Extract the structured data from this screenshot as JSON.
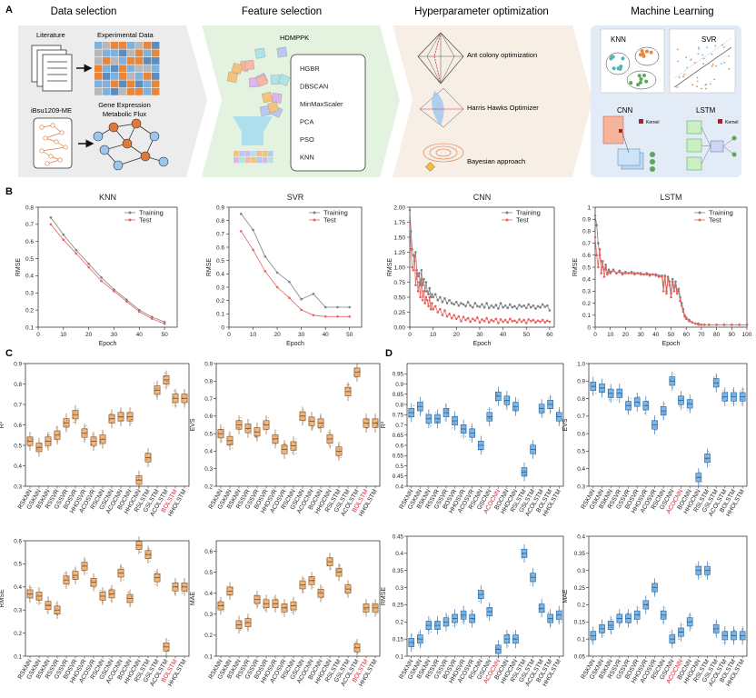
{
  "colors": {
    "training": "#808080",
    "test": "#e8625d",
    "box_orange": "#f0b680",
    "box_orange_edge": "#7a4a1c",
    "box_blue": "#7eb7e6",
    "box_blue_edge": "#1f5f9a",
    "highlight_label": "#d6202a",
    "panel_bg": "#eef0f3"
  },
  "panelA": {
    "letter": "A",
    "sections": [
      {
        "title": "Data selection",
        "bg": "#ececec"
      },
      {
        "title": "Feature selection",
        "bg": "#e3f3df"
      },
      {
        "title": "Hyperparameter optimization",
        "bg": "#f7eee6"
      },
      {
        "title": "Machine Learning",
        "bg": "#e3ebf7"
      }
    ],
    "data_selection": {
      "literature": "Literature",
      "experimental": "Experimental Data",
      "strain": "iBsu1209-ME",
      "gene_expression": "Gene Expression",
      "metabolic_flux": "Metabolic Flux"
    },
    "feature_selection": {
      "title": "HDMPPK",
      "methods": [
        "HGBR",
        "DBSCAN",
        "MinMaxScaler",
        "PCA",
        "PSO",
        "KNN"
      ]
    },
    "hyperparameter": {
      "methods": [
        "Ant colony optimization",
        "Harris Hawks Optimizer",
        "Bayesian approach"
      ]
    },
    "ml": {
      "models": [
        "KNN",
        "SVR",
        "CNN",
        "LSTM"
      ],
      "kernel": "Kernel"
    }
  },
  "panelB": {
    "letter": "B",
    "training_label": "Training",
    "test_label": "Test",
    "ylabel": "RMSE",
    "xlabel": "Epoch"
  },
  "chart_data": [
    {
      "id": "knn",
      "type": "line",
      "title": "KNN",
      "xlabel": "Epoch",
      "ylabel": "RMSE",
      "xlim": [
        0,
        55
      ],
      "ylim": [
        0.1,
        0.8
      ],
      "xticks": [
        0,
        10,
        20,
        30,
        40,
        50
      ],
      "yticks": [
        0.1,
        0.2,
        0.3,
        0.4,
        0.5,
        0.6,
        0.7,
        0.8
      ],
      "x": [
        5,
        10,
        15,
        20,
        25,
        30,
        35,
        40,
        45,
        50
      ],
      "series": [
        {
          "name": "Training",
          "values": [
            0.74,
            0.64,
            0.55,
            0.47,
            0.39,
            0.32,
            0.26,
            0.2,
            0.16,
            0.13
          ]
        },
        {
          "name": "Test",
          "values": [
            0.7,
            0.61,
            0.53,
            0.45,
            0.37,
            0.31,
            0.25,
            0.19,
            0.15,
            0.12
          ]
        }
      ]
    },
    {
      "id": "svr",
      "type": "line",
      "title": "SVR",
      "xlabel": "Epoch",
      "ylabel": "RMSE",
      "xlim": [
        0,
        55
      ],
      "ylim": [
        0,
        0.9
      ],
      "xticks": [
        0,
        10,
        20,
        30,
        40,
        50
      ],
      "yticks": [
        0,
        0.1,
        0.2,
        0.3,
        0.4,
        0.5,
        0.6,
        0.7,
        0.8,
        0.9
      ],
      "x": [
        5,
        10,
        15,
        20,
        25,
        30,
        35,
        40,
        45,
        50
      ],
      "series": [
        {
          "name": "Training",
          "values": [
            0.85,
            0.73,
            0.53,
            0.41,
            0.34,
            0.21,
            0.25,
            0.15,
            0.15,
            0.15
          ]
        },
        {
          "name": "Test",
          "values": [
            0.72,
            0.58,
            0.42,
            0.3,
            0.22,
            0.13,
            0.09,
            0.08,
            0.08,
            0.08
          ]
        }
      ]
    },
    {
      "id": "cnn",
      "type": "line",
      "title": "CNN",
      "xlabel": "Epoch",
      "ylabel": "RMSE",
      "xlim": [
        0,
        62
      ],
      "ylim": [
        0,
        2.0
      ],
      "xticks": [
        0,
        10,
        20,
        30,
        40,
        50,
        60
      ],
      "yticks": [
        0,
        0.25,
        0.5,
        0.75,
        1.0,
        1.25,
        1.5,
        1.75,
        2.0
      ],
      "x": [
        0,
        0.5,
        1,
        1.5,
        2,
        2.5,
        3,
        3.5,
        4,
        4.5,
        5,
        5.5,
        6,
        6.5,
        7,
        7.5,
        8,
        8.5,
        9,
        9.5,
        10,
        11,
        12,
        13,
        14,
        15,
        16,
        17,
        18,
        19,
        20,
        21,
        22,
        23,
        24,
        25,
        26,
        27,
        28,
        29,
        30,
        31,
        32,
        33,
        34,
        35,
        36,
        37,
        38,
        39,
        40,
        41,
        42,
        43,
        44,
        45,
        46,
        47,
        48,
        49,
        50,
        51,
        52,
        53,
        54,
        55,
        56,
        57,
        58,
        59,
        60
      ],
      "series": [
        {
          "name": "Training",
          "values": [
            1.95,
            1.6,
            1.3,
            1.2,
            1.1,
            1.25,
            0.95,
            0.85,
            0.9,
            0.7,
            0.95,
            0.7,
            0.8,
            0.6,
            0.75,
            0.6,
            0.55,
            0.65,
            0.5,
            0.55,
            0.5,
            0.55,
            0.45,
            0.5,
            0.42,
            0.48,
            0.4,
            0.45,
            0.4,
            0.38,
            0.42,
            0.36,
            0.4,
            0.38,
            0.35,
            0.42,
            0.36,
            0.33,
            0.4,
            0.35,
            0.34,
            0.38,
            0.33,
            0.4,
            0.32,
            0.36,
            0.33,
            0.37,
            0.31,
            0.4,
            0.33,
            0.36,
            0.32,
            0.38,
            0.33,
            0.35,
            0.31,
            0.37,
            0.34,
            0.36,
            0.32,
            0.38,
            0.33,
            0.36,
            0.31,
            0.35,
            0.33,
            0.38,
            0.34,
            0.36,
            0.28
          ]
        },
        {
          "name": "Test",
          "values": [
            1.75,
            1.3,
            1.0,
            0.95,
            1.2,
            0.7,
            0.9,
            0.6,
            0.75,
            0.5,
            0.8,
            0.45,
            0.6,
            0.4,
            0.5,
            0.45,
            0.35,
            0.5,
            0.3,
            0.4,
            0.3,
            0.35,
            0.25,
            0.3,
            0.2,
            0.28,
            0.18,
            0.22,
            0.15,
            0.2,
            0.14,
            0.18,
            0.1,
            0.17,
            0.12,
            0.15,
            0.09,
            0.14,
            0.11,
            0.16,
            0.08,
            0.13,
            0.1,
            0.15,
            0.08,
            0.12,
            0.1,
            0.14,
            0.07,
            0.13,
            0.09,
            0.12,
            0.08,
            0.14,
            0.1,
            0.11,
            0.08,
            0.13,
            0.09,
            0.12,
            0.07,
            0.13,
            0.1,
            0.12,
            0.08,
            0.11,
            0.09,
            0.12,
            0.08,
            0.11,
            0.09
          ]
        }
      ]
    },
    {
      "id": "lstm",
      "type": "line",
      "title": "LSTM",
      "xlabel": "Epoch",
      "ylabel": "RMSE",
      "xlim": [
        0,
        100
      ],
      "ylim": [
        0,
        1.0
      ],
      "xticks": [
        0,
        10,
        20,
        30,
        40,
        50,
        60,
        70,
        80,
        90,
        100
      ],
      "yticks": [
        0,
        0.1,
        0.2,
        0.3,
        0.4,
        0.5,
        0.6,
        0.7,
        0.8,
        0.9,
        1.0
      ],
      "x": [
        0,
        1,
        2,
        3,
        4,
        5,
        6,
        7,
        8,
        9,
        10,
        12,
        14,
        16,
        18,
        20,
        22,
        24,
        26,
        28,
        30,
        32,
        34,
        36,
        38,
        40,
        42,
        44,
        45,
        46,
        47,
        48,
        49,
        50,
        51,
        52,
        53,
        54,
        55,
        56,
        57,
        58,
        59,
        60,
        62,
        64,
        66,
        68,
        70,
        72,
        75,
        80,
        85,
        90,
        95,
        100
      ],
      "series": [
        {
          "name": "Training",
          "values": [
            0.93,
            0.85,
            0.7,
            0.6,
            0.55,
            0.5,
            0.48,
            0.52,
            0.45,
            0.48,
            0.46,
            0.48,
            0.45,
            0.47,
            0.45,
            0.46,
            0.45,
            0.46,
            0.45,
            0.45,
            0.45,
            0.44,
            0.45,
            0.44,
            0.44,
            0.44,
            0.43,
            0.43,
            0.35,
            0.43,
            0.3,
            0.42,
            0.38,
            0.28,
            0.4,
            0.33,
            0.38,
            0.3,
            0.32,
            0.25,
            0.2,
            0.15,
            0.1,
            0.08,
            0.06,
            0.04,
            0.03,
            0.03,
            0.02,
            0.02,
            0.02,
            0.02,
            0.02,
            0.02,
            0.02,
            0.02
          ]
        },
        {
          "name": "Test",
          "values": [
            0.75,
            0.6,
            0.5,
            0.65,
            0.45,
            0.55,
            0.42,
            0.5,
            0.44,
            0.46,
            0.45,
            0.47,
            0.45,
            0.46,
            0.44,
            0.45,
            0.45,
            0.45,
            0.44,
            0.45,
            0.44,
            0.44,
            0.44,
            0.43,
            0.44,
            0.43,
            0.42,
            0.42,
            0.3,
            0.42,
            0.28,
            0.4,
            0.35,
            0.25,
            0.38,
            0.3,
            0.35,
            0.28,
            0.3,
            0.22,
            0.18,
            0.13,
            0.09,
            0.07,
            0.05,
            0.04,
            0.03,
            0.02,
            0.02,
            0.02,
            0.02,
            0.02,
            0.02,
            0.02,
            0.02,
            0.02
          ]
        }
      ]
    },
    {
      "id": "c_r2",
      "type": "box",
      "panel": "C",
      "ylabel": "R²",
      "ylim": [
        0.3,
        0.9
      ],
      "yticks": [
        0.3,
        0.4,
        0.5,
        0.6,
        0.7,
        0.8,
        0.9
      ],
      "categories": [
        "RSKNN",
        "GSKNN",
        "BSKNN",
        "RSSVR",
        "GSSVR",
        "BOSVR",
        "HHOSVR",
        "ACOSVR",
        "RSCNN",
        "GSCNN",
        "ACOCNN",
        "BOCNN",
        "HHOCNN",
        "RSLSTM",
        "GSLSTM",
        "ACOLSTM",
        "BOLSTM",
        "HHOLSTM"
      ],
      "highlight": [
        "BOLSTM"
      ],
      "values": [
        0.52,
        0.49,
        0.52,
        0.55,
        0.61,
        0.65,
        0.56,
        0.52,
        0.53,
        0.63,
        0.64,
        0.64,
        0.33,
        0.44,
        0.77,
        0.82,
        0.73,
        0.73
      ]
    },
    {
      "id": "c_evs",
      "type": "box",
      "panel": "C",
      "ylabel": "EVS",
      "ylim": [
        0.2,
        0.9
      ],
      "yticks": [
        0.2,
        0.3,
        0.4,
        0.5,
        0.6,
        0.7,
        0.8,
        0.9
      ],
      "categories": [
        "RSKNN",
        "GSKNN",
        "BSKNN",
        "RSSVR",
        "GSSVR",
        "BOSVR",
        "HHOSVR",
        "ACOSVR",
        "RSCNN",
        "GSCNN",
        "ACOCNN",
        "BOCNN",
        "HHOCNN",
        "RSLSTM",
        "GSLSTM",
        "ACOLSTM",
        "BOLSTM",
        "HHOLSTM"
      ],
      "highlight": [
        "BOLSTM"
      ],
      "values": [
        0.5,
        0.46,
        0.55,
        0.53,
        0.51,
        0.55,
        0.47,
        0.41,
        0.43,
        0.6,
        0.57,
        0.56,
        0.47,
        0.4,
        0.74,
        0.85,
        0.56,
        0.56
      ]
    },
    {
      "id": "c_rmse",
      "type": "box",
      "panel": "C",
      "ylabel": "RMSE",
      "ylim": [
        0.1,
        0.6
      ],
      "yticks": [
        0.1,
        0.2,
        0.3,
        0.4,
        0.5,
        0.6
      ],
      "categories": [
        "RSKNN",
        "GSKNN",
        "BSKNN",
        "RSSVR",
        "GSSVR",
        "BOSVR",
        "HHOSVR",
        "ACOSVR",
        "RSCNN",
        "GSCNN",
        "ACOCNN",
        "BOCNN",
        "HHOCNN",
        "RSLSTM",
        "GSLSTM",
        "ACOLSTM",
        "BOLSTM",
        "HHOLSTM"
      ],
      "highlight": [
        "BOLSTM"
      ],
      "values": [
        0.37,
        0.36,
        0.32,
        0.3,
        0.43,
        0.45,
        0.49,
        0.42,
        0.36,
        0.37,
        0.46,
        0.35,
        0.58,
        0.54,
        0.44,
        0.14,
        0.4,
        0.4
      ]
    },
    {
      "id": "c_mae",
      "type": "box",
      "panel": "C",
      "ylabel": "MAE",
      "ylim": [
        0.1,
        0.65
      ],
      "yticks": [
        0.1,
        0.2,
        0.3,
        0.4,
        0.5,
        0.6
      ],
      "categories": [
        "RSKNN",
        "GSKNN",
        "BSKNN",
        "RSSVR",
        "GSSVR",
        "BOSVR",
        "HHOSVR",
        "ACOSVR",
        "RSCNN",
        "GSCNN",
        "ACOCNN",
        "BOCNN",
        "HHOCNN",
        "RSLSTM",
        "GSLSTM",
        "ACOLSTM",
        "BOLSTM",
        "HHOLSTM"
      ],
      "highlight": [
        "BOLSTM"
      ],
      "values": [
        0.34,
        0.41,
        0.25,
        0.26,
        0.37,
        0.35,
        0.35,
        0.33,
        0.34,
        0.44,
        0.46,
        0.4,
        0.55,
        0.5,
        0.42,
        0.14,
        0.33,
        0.33
      ]
    },
    {
      "id": "d_r2",
      "type": "box",
      "panel": "D",
      "ylabel": "R²",
      "ylim": [
        0.4,
        1.0
      ],
      "yticks": [
        0.4,
        0.45,
        0.5,
        0.55,
        0.6,
        0.65,
        0.7,
        0.75,
        0.8,
        0.85,
        0.9,
        0.95
      ],
      "categories": [
        "RSKNN",
        "GSKNN",
        "BSKNN",
        "RSSVR",
        "GSSVR",
        "BOSVR",
        "HHOSVR",
        "ACOSVR",
        "RSCNN",
        "GSCNN",
        "ACOCNN",
        "BOCNN",
        "HHOCNN",
        "RSLSTM",
        "GSLSTM",
        "ACOLSTM",
        "BOLSTM",
        "HHOLSTM"
      ],
      "highlight": [
        "ACOCNN"
      ],
      "values": [
        0.76,
        0.79,
        0.73,
        0.73,
        0.76,
        0.72,
        0.68,
        0.66,
        0.6,
        0.74,
        0.84,
        0.82,
        0.79,
        0.47,
        0.58,
        0.78,
        0.8,
        0.74
      ]
    },
    {
      "id": "d_evs",
      "type": "box",
      "panel": "D",
      "ylabel": "EVS",
      "ylim": [
        0.3,
        1.0
      ],
      "yticks": [
        0.3,
        0.4,
        0.5,
        0.6,
        0.7,
        0.8,
        0.9,
        1.0
      ],
      "categories": [
        "RSKNN",
        "GSKNN",
        "BSKNN",
        "RSSVR",
        "GSSVR",
        "BOSVR",
        "HHOSVR",
        "ACOSVR",
        "RSCNN",
        "GSCNN",
        "ACOCNN",
        "BOCNN",
        "HHOCNN",
        "RSLSTM",
        "GSLSTM",
        "ACOLSTM",
        "BOLSTM",
        "HHOLSTM"
      ],
      "highlight": [
        "ACOCNN"
      ],
      "values": [
        0.87,
        0.86,
        0.83,
        0.83,
        0.76,
        0.78,
        0.76,
        0.65,
        0.73,
        0.9,
        0.79,
        0.77,
        0.35,
        0.46,
        0.89,
        0.81,
        0.81,
        0.81
      ]
    },
    {
      "id": "d_rmse",
      "type": "box",
      "panel": "D",
      "ylabel": "RMSE",
      "ylim": [
        0.1,
        0.45
      ],
      "yticks": [
        0.1,
        0.15,
        0.2,
        0.25,
        0.3,
        0.35,
        0.4,
        0.45
      ],
      "categories": [
        "RSKNN",
        "GSKNN",
        "BSKNN",
        "RSSVR",
        "GSSVR",
        "BOSVR",
        "HHOSVR",
        "ACOSVR",
        "RSCNN",
        "GSCNN",
        "ACOCNN",
        "BOCNN",
        "HHOCNN",
        "RSLSTM",
        "GSLSTM",
        "ACOLSTM",
        "BOLSTM",
        "HHOLSTM"
      ],
      "highlight": [
        "ACOCNN"
      ],
      "values": [
        0.14,
        0.15,
        0.19,
        0.19,
        0.2,
        0.21,
        0.22,
        0.21,
        0.28,
        0.23,
        0.12,
        0.15,
        0.15,
        0.4,
        0.33,
        0.24,
        0.21,
        0.22
      ]
    },
    {
      "id": "d_mae",
      "type": "box",
      "panel": "D",
      "ylabel": "MAE",
      "ylim": [
        0.05,
        0.4
      ],
      "yticks": [
        0.05,
        0.1,
        0.15,
        0.2,
        0.25,
        0.3,
        0.35,
        0.4
      ],
      "categories": [
        "RSKNN",
        "GSKNN",
        "BSKNN",
        "RSSVR",
        "GSSVR",
        "BOSVR",
        "HHOSVR",
        "ACOSVR",
        "RSCNN",
        "GSCNN",
        "ACOCNN",
        "BOCNN",
        "HHOCNN",
        "RSLSTM",
        "GSLSTM",
        "ACOLSTM",
        "BOLSTM",
        "HHOLSTM"
      ],
      "highlight": [
        "ACOCNN"
      ],
      "values": [
        0.11,
        0.13,
        0.14,
        0.16,
        0.16,
        0.17,
        0.2,
        0.25,
        0.17,
        0.1,
        0.12,
        0.15,
        0.3,
        0.3,
        0.13,
        0.11,
        0.11,
        0.11
      ]
    }
  ],
  "panel_letters": {
    "C": "C",
    "D": "D"
  }
}
